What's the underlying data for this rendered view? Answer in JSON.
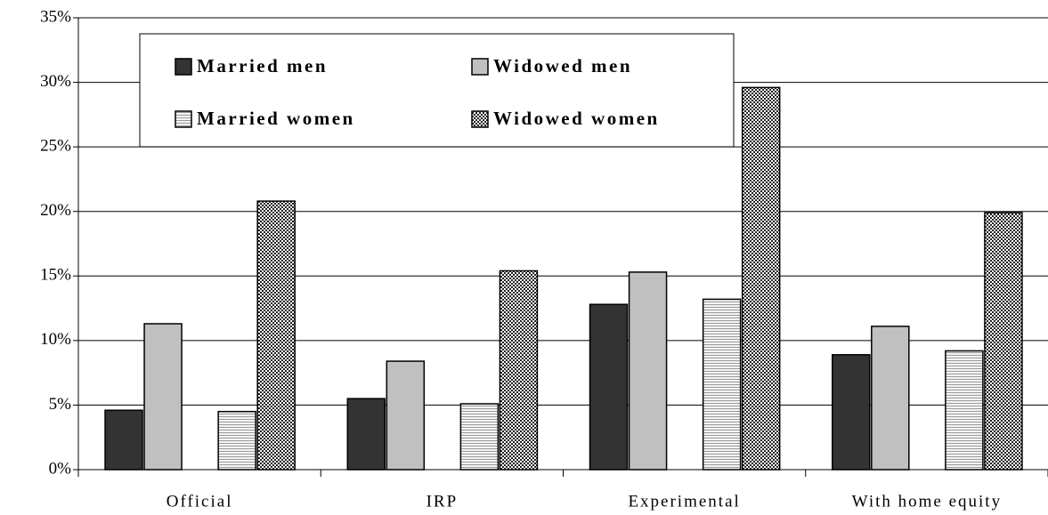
{
  "chart_data": {
    "type": "bar",
    "categories": [
      "Official",
      "IRP",
      "Experimental",
      "With home equity"
    ],
    "series": [
      {
        "name": "Married men",
        "color": "#333333",
        "pattern": "solid",
        "values": [
          4.6,
          5.5,
          12.8,
          8.9
        ]
      },
      {
        "name": "Widowed men",
        "color": "#c0c0c0",
        "pattern": "solid",
        "values": [
          11.3,
          8.4,
          15.3,
          11.1
        ]
      },
      {
        "name": "Married women",
        "color": "#9a9a9a",
        "pattern": "horizontal-lines",
        "values": [
          4.5,
          5.1,
          13.2,
          9.2
        ]
      },
      {
        "name": "Widowed women",
        "color": "#222222",
        "pattern": "checker",
        "values": [
          20.8,
          15.4,
          29.6,
          19.9
        ]
      }
    ],
    "ylim": [
      0,
      35
    ],
    "yticks": [
      {
        "value": 0,
        "label": "0%"
      },
      {
        "value": 5,
        "label": "5%"
      },
      {
        "value": 10,
        "label": "10%"
      },
      {
        "value": 15,
        "label": "15%"
      },
      {
        "value": 20,
        "label": "20%"
      },
      {
        "value": 25,
        "label": "25%"
      },
      {
        "value": 30,
        "label": "30%"
      },
      {
        "value": 35,
        "label": "35%"
      }
    ],
    "grid": true,
    "legend": "top-left"
  }
}
